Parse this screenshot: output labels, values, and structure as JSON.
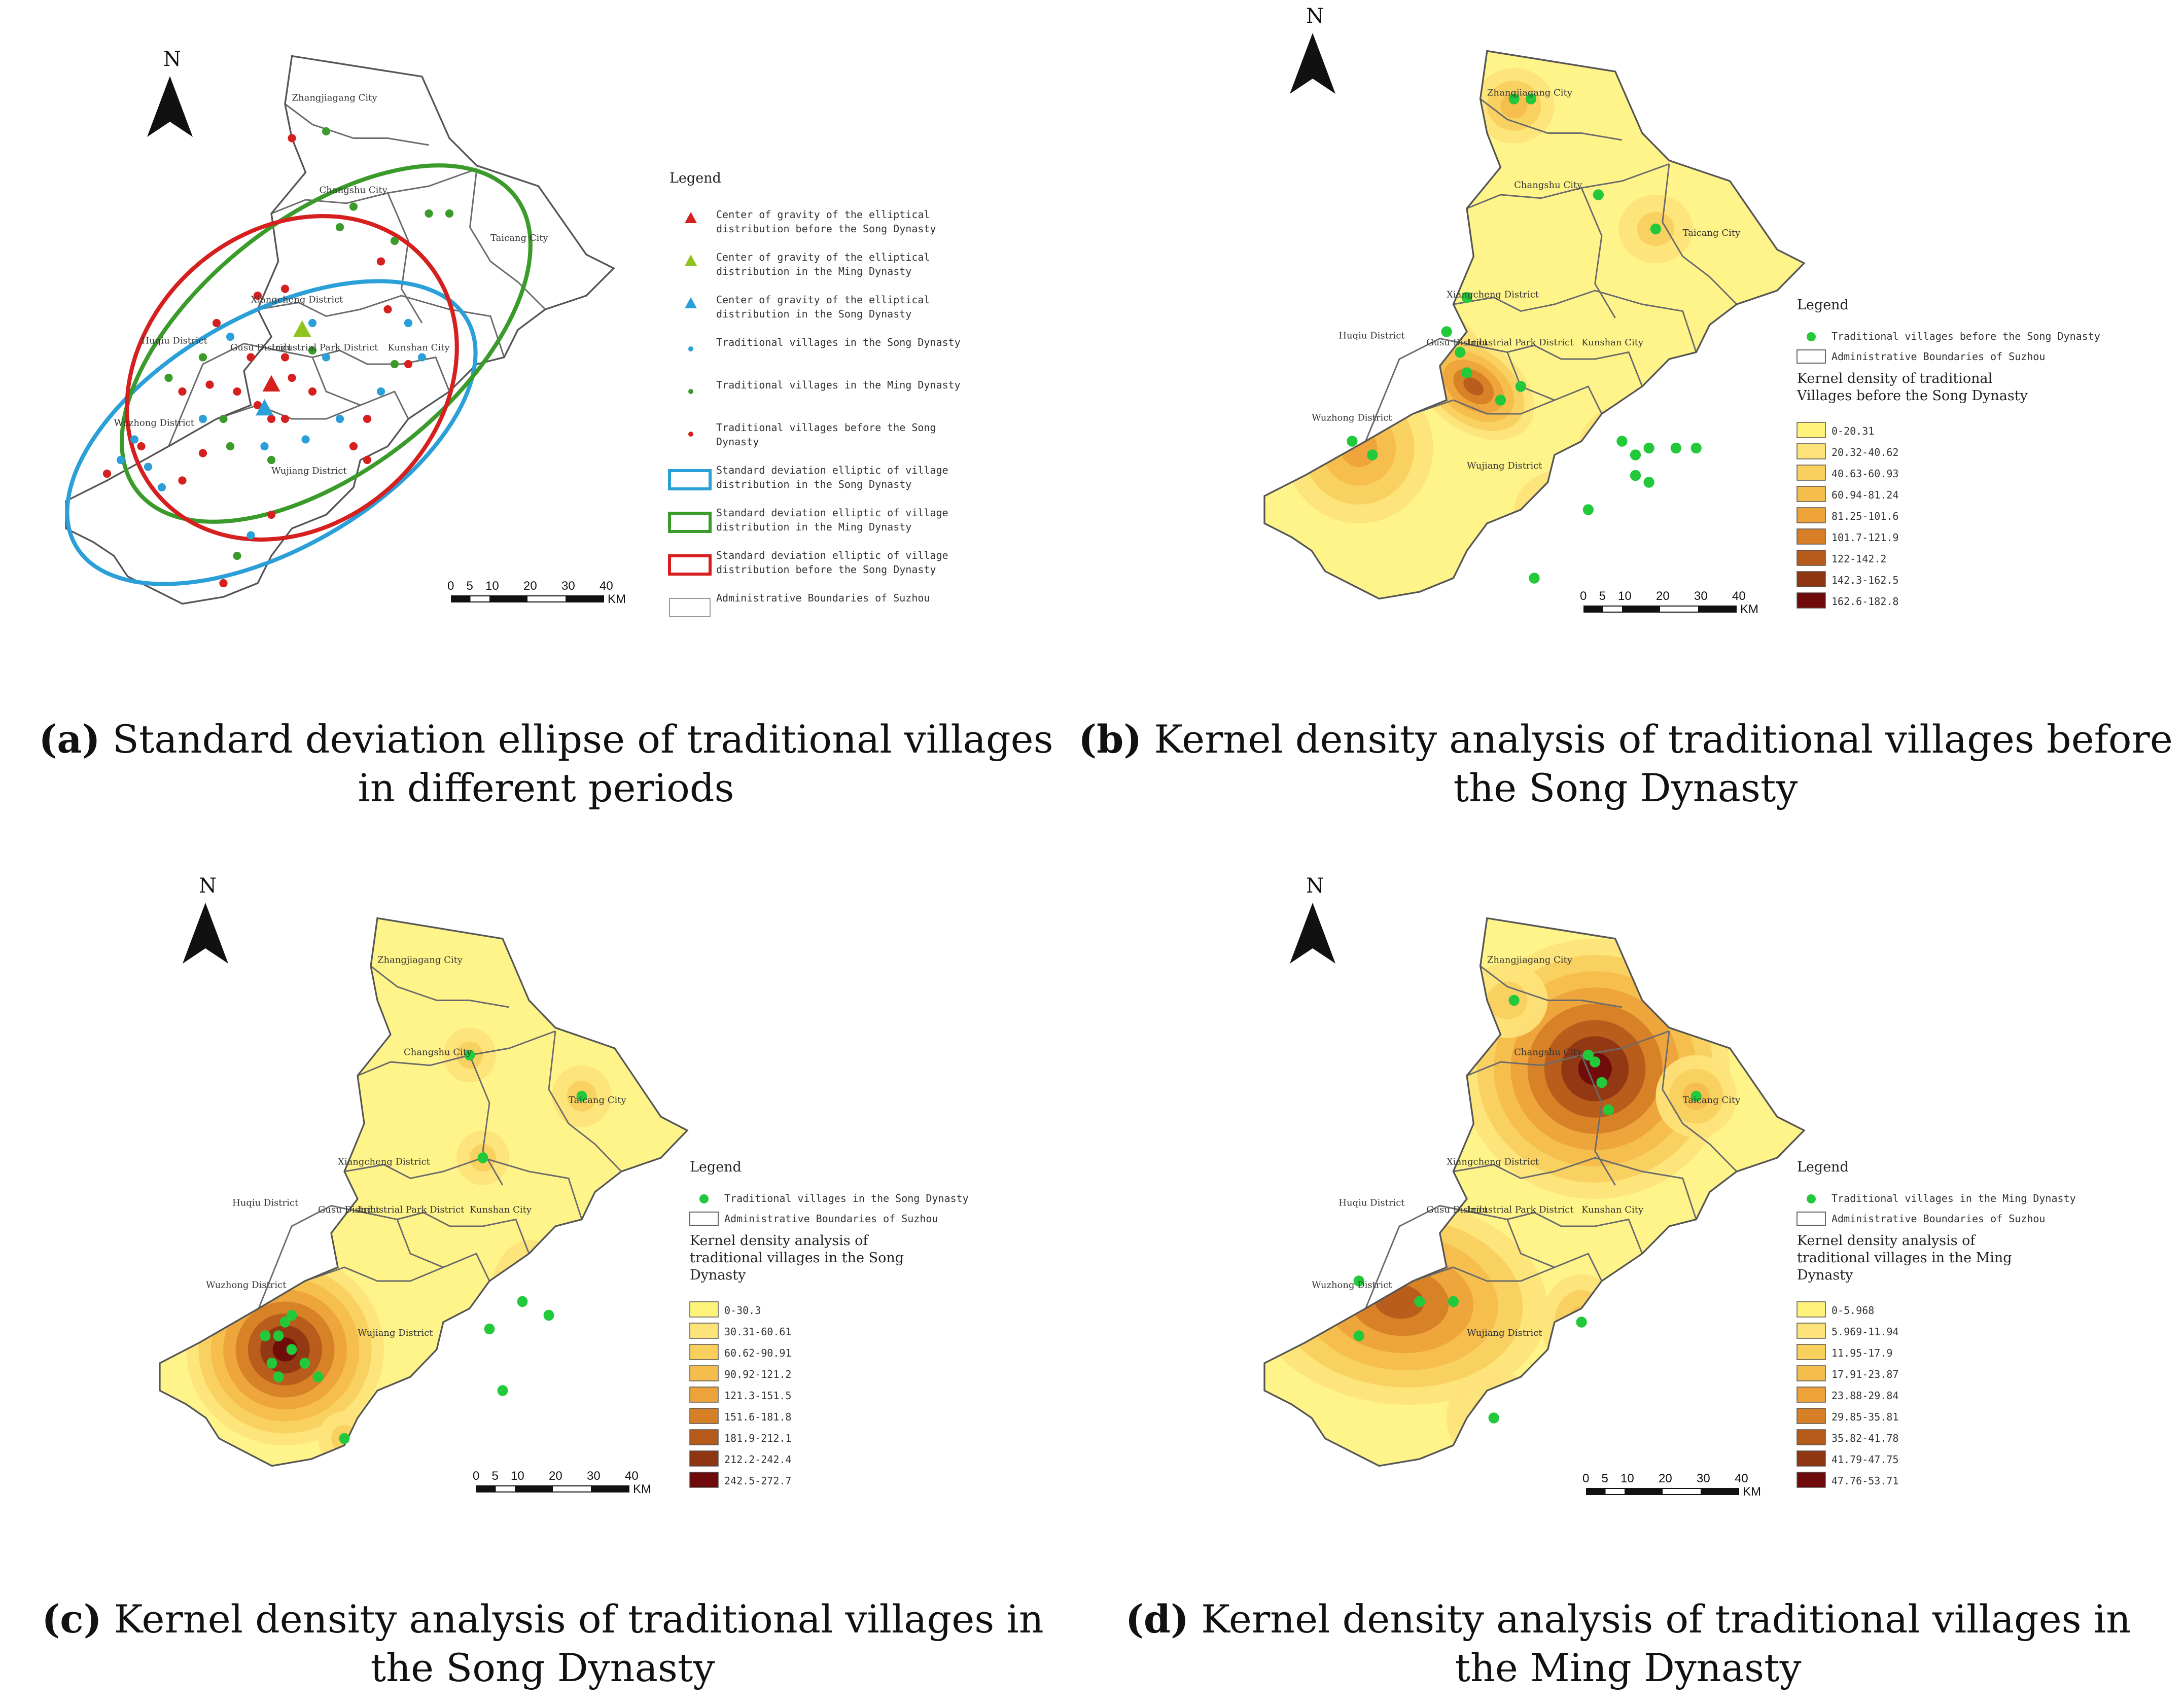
{
  "north_label": "N",
  "scale": {
    "ticks": [
      "0",
      "5",
      "10",
      "20",
      "30",
      "40"
    ],
    "unit": "KM"
  },
  "place_labels": {
    "zhangjiagang": "Zhangjiagang City",
    "changshu": "Changshu City",
    "taicang": "Taicang City",
    "xiangcheng": "Xiangcheng District",
    "huqiu": "Huqiu District",
    "gusu": "Gusu District",
    "industrial_park": "Industrial Park District",
    "kunshan": "Kunshan City",
    "wuzhong": "Wuzhong District",
    "wujiang": "Wujiang District"
  },
  "panels": [
    {
      "id": "a",
      "caption_letter": "(a)",
      "caption_text": "Standard deviation ellipse of traditional villages in different periods",
      "legend_title": "Legend",
      "legend": [
        {
          "symbol": "triangle",
          "color": "#d61f1f",
          "label_lines": [
            "Center of gravity of the elliptical",
            "distribution before the Song Dynasty"
          ]
        },
        {
          "symbol": "triangle",
          "color": "#8fc31f",
          "label_lines": [
            "Center of gravity of the elliptical",
            "distribution in the Ming Dynasty"
          ]
        },
        {
          "symbol": "triangle",
          "color": "#2a9fd8",
          "label_lines": [
            "Center of gravity of the elliptical",
            "distribution in the Song Dynasty"
          ]
        },
        {
          "symbol": "dot",
          "color": "#2a9fd8",
          "label_lines": [
            "Traditional villages in the Song Dynasty"
          ]
        },
        {
          "symbol": "dot",
          "color": "#3a9a2a",
          "label_lines": [
            "Traditional villages in the Ming Dynasty"
          ]
        },
        {
          "symbol": "dot",
          "color": "#d61f1f",
          "label_lines": [
            "Traditional villages before the Song",
            "Dynasty"
          ]
        },
        {
          "symbol": "box",
          "color": "#2a9fd8",
          "label_lines": [
            "Standard deviation elliptic of village",
            "distribution in the Song Dynasty"
          ]
        },
        {
          "symbol": "box",
          "color": "#3a9a2a",
          "label_lines": [
            "Standard deviation elliptic of village",
            "distribution in the Ming Dynasty"
          ]
        },
        {
          "symbol": "box",
          "color": "#d61f1f",
          "label_lines": [
            "Standard deviation elliptic of village",
            "distribution before the Song Dynasty"
          ]
        },
        {
          "symbol": "box",
          "color": "#9a9a9a",
          "label_lines": [
            "Administrative Boundaries of Suzhou"
          ]
        }
      ]
    },
    {
      "id": "b",
      "caption_letter": "(b)",
      "caption_text": "Kernel density analysis of traditional villages before the Song Dynasty",
      "legend_title": "Legend",
      "point_label": "Traditional villages before the Song Dynasty",
      "boundary_label": "Administrative Boundaries of Suzhou",
      "density_title_lines": [
        "Kernel density of traditional",
        "Villages before the Song Dynasty"
      ],
      "classes": [
        "0-20.31",
        "20.32-40.62",
        "40.63-60.93",
        "60.94-81.24",
        "81.25-101.6",
        "101.7-121.9",
        "122-142.2",
        "142.3-162.5",
        "162.6-182.8"
      ]
    },
    {
      "id": "c",
      "caption_letter": "(c)",
      "caption_text": "Kernel density analysis of traditional villages in the Song Dynasty",
      "legend_title": "Legend",
      "point_label": "Traditional villages in the Song Dynasty",
      "boundary_label": "Administrative Boundaries of Suzhou",
      "density_title_lines": [
        "Kernel density analysis of",
        "traditional villages in the Song",
        "Dynasty"
      ],
      "classes": [
        "0-30.3",
        "30.31-60.61",
        "60.62-90.91",
        "90.92-121.2",
        "121.3-151.5",
        "151.6-181.8",
        "181.9-212.1",
        "212.2-242.4",
        "242.5-272.7"
      ]
    },
    {
      "id": "d",
      "caption_letter": "(d)",
      "caption_text": "Kernel density analysis of traditional villages in the Ming Dynasty",
      "legend_title": "Legend",
      "point_label": "Traditional villages in the Ming Dynasty",
      "boundary_label": "Administrative Boundaries of Suzhou",
      "density_title_lines": [
        "Kernel density analysis of",
        "traditional villages in the Ming",
        "Dynasty"
      ],
      "classes": [
        "0-5.968",
        "5.969-11.94",
        "11.95-17.9",
        "17.91-23.87",
        "23.88-29.84",
        "29.85-35.81",
        "35.82-41.78",
        "41.79-47.75",
        "47.76-53.71"
      ]
    }
  ],
  "class_colors": [
    "#fff27a",
    "#fde37a",
    "#f9cf5e",
    "#f5bd4c",
    "#eda33a",
    "#d67f26",
    "#b65a1c",
    "#8e3512",
    "#6e0a0a"
  ],
  "colors": {
    "map_fill": "#fff48a",
    "boundary": "#555555",
    "point_green": "#22c93a"
  }
}
